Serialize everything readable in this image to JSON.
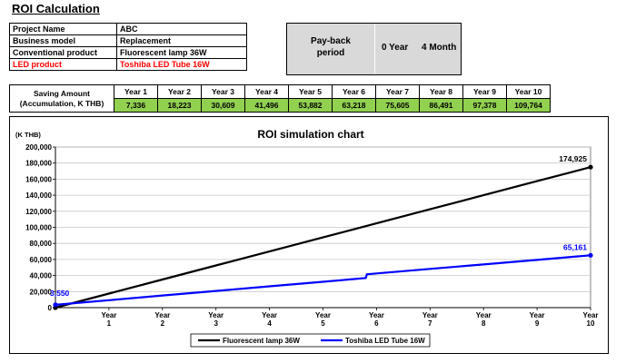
{
  "page": {
    "title": "ROI Calculation"
  },
  "project": {
    "rows": [
      {
        "label": "Project Name",
        "value": "ABC"
      },
      {
        "label": "Business model",
        "value": "Replacement"
      },
      {
        "label": "Conventional product",
        "value": "Fluorescent lamp 36W"
      },
      {
        "label": "LED product",
        "value": "Toshiba LED Tube 16W"
      }
    ],
    "highlight_color": "#ff0000"
  },
  "payback": {
    "label_line1": "Pay-back",
    "label_line2": "period",
    "years": "0 Year",
    "months": "4 Month"
  },
  "saving": {
    "label_line1": "Saving Amount",
    "label_line2": "(Accumulation, K THB)",
    "years": [
      "Year 1",
      "Year 2",
      "Year 3",
      "Year 4",
      "Year 5",
      "Year 6",
      "Year 7",
      "Year 8",
      "Year 9",
      "Year 10"
    ],
    "values": [
      "7,336",
      "18,223",
      "30,609",
      "41,496",
      "53,882",
      "63,218",
      "75,605",
      "86,491",
      "97,378",
      "109,764"
    ],
    "value_color": "#92d050"
  },
  "chart_data": {
    "type": "line",
    "title": "ROI simulation chart",
    "y_unit": "(K THB)",
    "ylim": [
      0,
      200000
    ],
    "yticks": [
      0,
      20000,
      40000,
      60000,
      80000,
      100000,
      120000,
      140000,
      160000,
      180000,
      200000
    ],
    "ytick_labels": [
      "0",
      "20,000",
      "40,000",
      "60,000",
      "80,000",
      "100,000",
      "120,000",
      "140,000",
      "160,000",
      "180,000",
      "200,000"
    ],
    "xlim": [
      0,
      10
    ],
    "xticks": [
      1,
      2,
      3,
      4,
      5,
      6,
      7,
      8,
      9,
      10
    ],
    "xtick_line1": "Year",
    "grid": true,
    "legend_position": "bottom",
    "series": [
      {
        "name": "Fluorescent lamp 36W",
        "color": "#000000",
        "x": [
          0,
          1,
          2,
          3,
          4,
          5,
          6,
          7,
          8,
          9,
          10
        ],
        "y": [
          0,
          17500,
          35000,
          52500,
          70000,
          87500,
          105000,
          122500,
          140000,
          157500,
          174925
        ],
        "end_label": "174,925"
      },
      {
        "name": "Toshiba LED Tube 16W",
        "color": "#0000ff",
        "x": [
          0,
          1,
          2,
          3,
          4,
          5,
          5.8,
          5.82,
          6,
          7,
          8,
          9,
          10
        ],
        "y": [
          3550,
          9300,
          15100,
          20800,
          26500,
          32200,
          36800,
          41500,
          42600,
          48200,
          53800,
          59400,
          65161
        ],
        "start_label": "3,550",
        "end_label": "65,161"
      }
    ]
  }
}
